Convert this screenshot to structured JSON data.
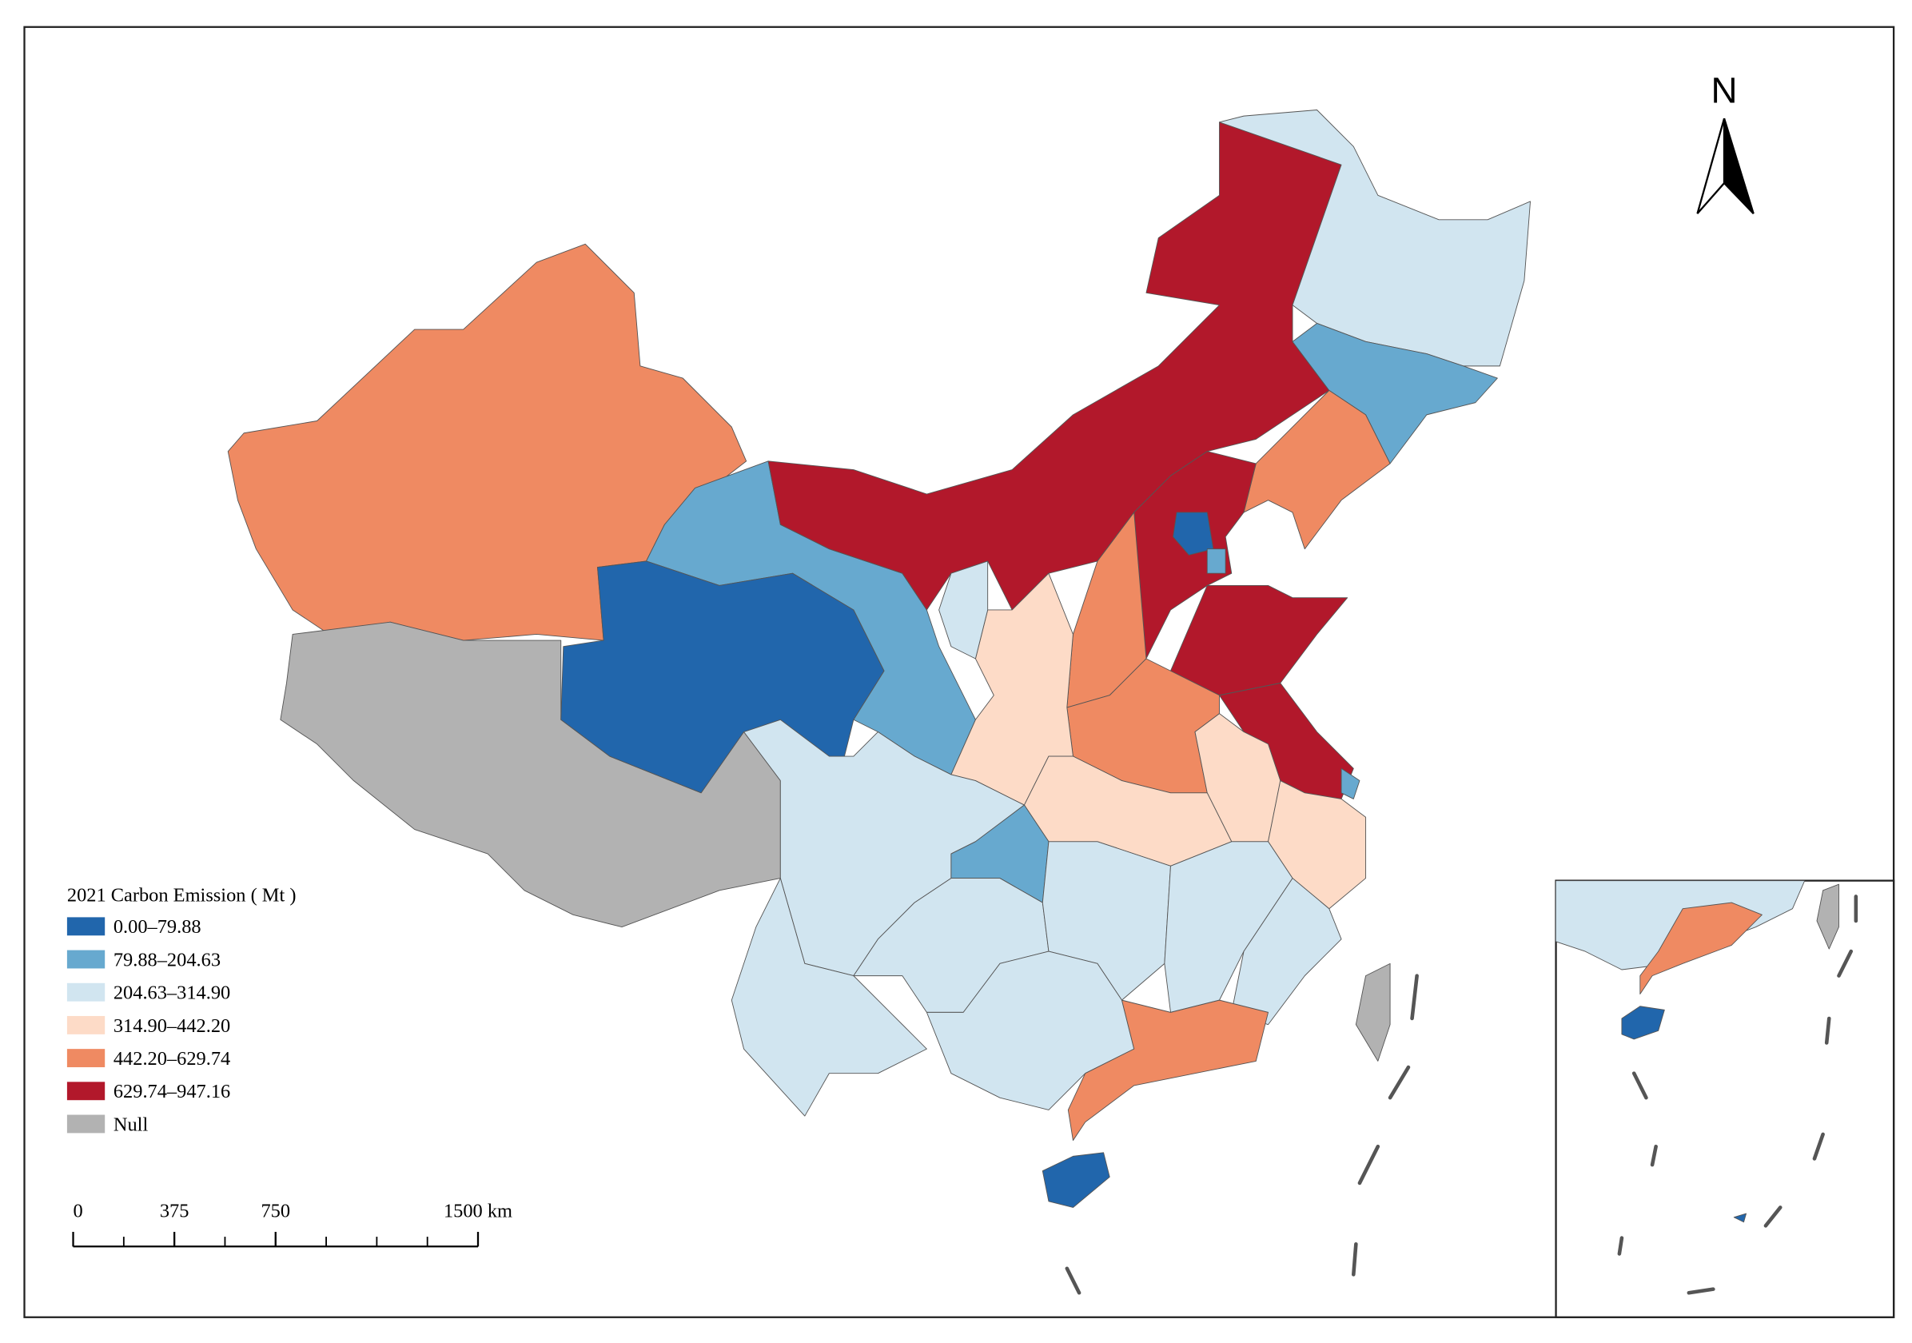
{
  "legend": {
    "title": "2021 Carbon Emission ( Mt )",
    "items": [
      {
        "label": "0.00–79.88",
        "color": "#2166ac"
      },
      {
        "label": "79.88–204.63",
        "color": "#67a9cf"
      },
      {
        "label": "204.63–314.90",
        "color": "#d1e5f0"
      },
      {
        "label": "314.90–442.20",
        "color": "#fddbc7"
      },
      {
        "label": "442.20–629.74",
        "color": "#ef8a62"
      },
      {
        "label": "629.74–947.16",
        "color": "#b2182b"
      },
      {
        "label": "Null",
        "color": "#b2b2b2"
      }
    ]
  },
  "north_arrow": "N",
  "scale_bar": {
    "ticks": [
      0,
      375,
      750,
      {
        "value": 1500,
        "label": "1500 km"
      }
    ]
  }
}
